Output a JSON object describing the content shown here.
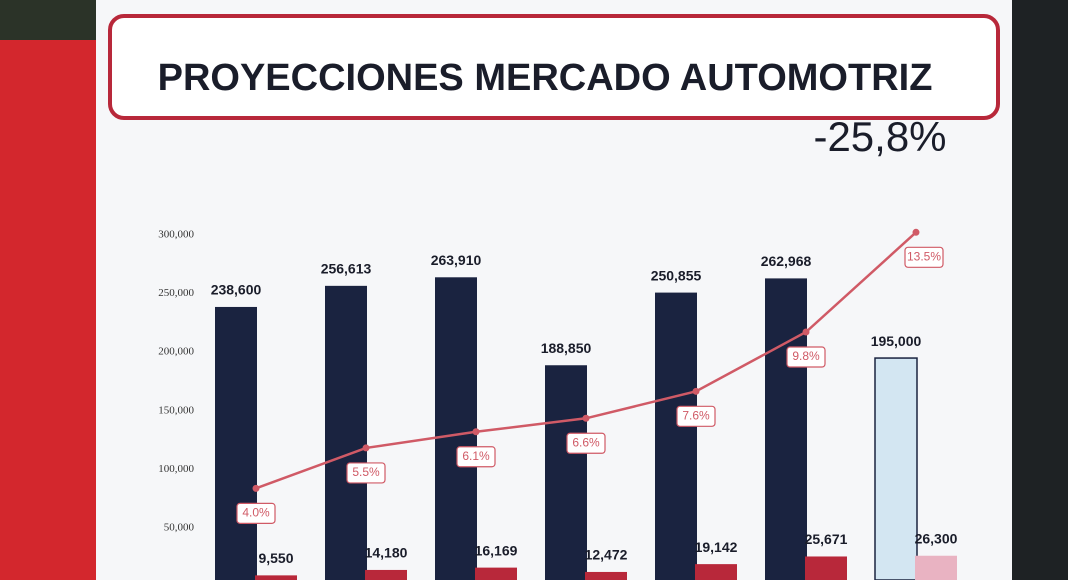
{
  "chart_data": {
    "type": "bar",
    "title": "PROYECCIONES MERCADO AUTOMOTRIZ",
    "annotation": "-25,8%",
    "categories": [
      null,
      null,
      null,
      null,
      null,
      null,
      null
    ],
    "series": [
      {
        "values": [
          238600,
          256613,
          263910,
          188850,
          250855,
          262968,
          195000
        ],
        "value_labels": [
          "238,600",
          "256,613",
          "263,910",
          "188,850",
          "250,855",
          "262,968",
          "195,000"
        ],
        "colors": [
          "#1a2340",
          "#1a2340",
          "#1a2340",
          "#1a2340",
          "#1a2340",
          "#1a2340",
          "#d3e6f2"
        ]
      },
      {
        "values": [
          9550,
          14180,
          16169,
          12472,
          19142,
          25671,
          26300
        ],
        "value_labels": [
          "9,550",
          "14,180",
          "16,169",
          "12,472",
          "19,142",
          "25,671",
          "26,300"
        ],
        "colors": [
          "#b8283a",
          "#b8283a",
          "#b8283a",
          "#b8283a",
          "#b8283a",
          "#b8283a",
          "#e9b3c2"
        ]
      },
      {
        "type": "line",
        "axis": "y2",
        "color": "#d05a66",
        "values": [
          4.0,
          5.5,
          6.1,
          6.6,
          7.6,
          9.8,
          13.5
        ],
        "value_labels": [
          "4.0%",
          "5.5%",
          "6.1%",
          "6.6%",
          "7.6%",
          "9.8%",
          "13.5%"
        ]
      }
    ],
    "ylim": [
      5600,
      300000
    ],
    "yticks": [
      {
        "value": 50000,
        "label": "50,000"
      },
      {
        "value": 100000,
        "label": "100,000"
      },
      {
        "value": 150000,
        "label": "150,000"
      },
      {
        "value": 200000,
        "label": "200,000"
      },
      {
        "value": 250000,
        "label": "250,000"
      },
      {
        "value": 300000,
        "label": "300,000"
      }
    ],
    "y2lim": [
      0.6,
      13.4
    ]
  }
}
